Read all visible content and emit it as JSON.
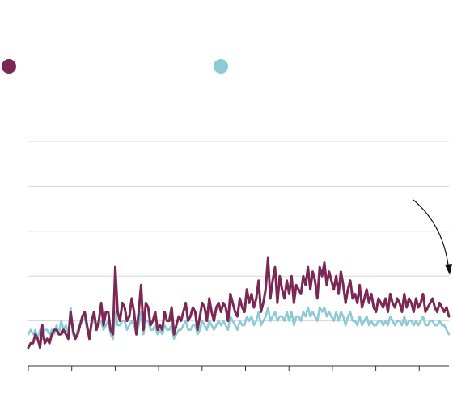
{
  "chart_data": {
    "type": "line",
    "title": "",
    "xlabel": "",
    "ylabel": "",
    "x_count": 180,
    "ylim": [
      0,
      50
    ],
    "yticks": [
      10,
      20,
      30,
      40,
      50
    ],
    "xtick_count": 10,
    "grid": true,
    "legend": "top",
    "series": [
      {
        "color": "#7b2855",
        "values": [
          4,
          5,
          5,
          7,
          6,
          4,
          9,
          5,
          6,
          5,
          7,
          8,
          8,
          7,
          7,
          8,
          7,
          6,
          12,
          8,
          6,
          7,
          9,
          11,
          12,
          9,
          6,
          10,
          12,
          8,
          10,
          14,
          9,
          12,
          12,
          8,
          7,
          22,
          12,
          10,
          14,
          13,
          10,
          11,
          15,
          12,
          7,
          12,
          18,
          8,
          14,
          13,
          9,
          10,
          12,
          8,
          9,
          8,
          12,
          10,
          10,
          13,
          7,
          9,
          11,
          10,
          12,
          14,
          10,
          11,
          13,
          12,
          8,
          11,
          14,
          13,
          10,
          15,
          12,
          10,
          13,
          14,
          12,
          14,
          13,
          10,
          16,
          14,
          12,
          11,
          15,
          13,
          12,
          17,
          14,
          16,
          13,
          15,
          19,
          12,
          14,
          17,
          24,
          15,
          19,
          22,
          14,
          20,
          17,
          15,
          19,
          16,
          20,
          14,
          18,
          17,
          16,
          20,
          18,
          22,
          17,
          21,
          19,
          15,
          22,
          20,
          23,
          18,
          21,
          19,
          17,
          20,
          16,
          21,
          18,
          14,
          17,
          19,
          15,
          16,
          14,
          18,
          13,
          15,
          17,
          14,
          16,
          13,
          12,
          15,
          14,
          13,
          15,
          12,
          16,
          14,
          13,
          15,
          14,
          12,
          16,
          13,
          15,
          14,
          12,
          15,
          13,
          14,
          16,
          12,
          13,
          14,
          15,
          13,
          12,
          14,
          13,
          12,
          13,
          11
        ]
      },
      {
        "color": "#8ccad6",
        "values": [
          7,
          8,
          7,
          8,
          6,
          8,
          6,
          8,
          8,
          7,
          8,
          7,
          9,
          7,
          10,
          8,
          9,
          7,
          13,
          7,
          6,
          8,
          9,
          10,
          11,
          8,
          7,
          9,
          11,
          8,
          9,
          10,
          8,
          9,
          10,
          7,
          6,
          12,
          9,
          9,
          10,
          10,
          8,
          9,
          10,
          9,
          7,
          9,
          12,
          7,
          10,
          10,
          8,
          8,
          9,
          7,
          8,
          7,
          9,
          8,
          8,
          9,
          6,
          7,
          8,
          8,
          9,
          10,
          8,
          8,
          9,
          9,
          7,
          8,
          10,
          9,
          8,
          10,
          9,
          8,
          9,
          10,
          9,
          10,
          9,
          8,
          11,
          10,
          9,
          8,
          10,
          9,
          9,
          11,
          10,
          11,
          9,
          10,
          12,
          9,
          10,
          11,
          13,
          10,
          11,
          12,
          10,
          11,
          11,
          10,
          12,
          10,
          12,
          9,
          11,
          11,
          10,
          12,
          11,
          13,
          11,
          12,
          11,
          10,
          13,
          12,
          13,
          11,
          12,
          11,
          10,
          12,
          10,
          12,
          11,
          9,
          11,
          12,
          10,
          10,
          9,
          11,
          9,
          10,
          11,
          9,
          10,
          9,
          9,
          10,
          10,
          9,
          10,
          9,
          11,
          10,
          9,
          10,
          10,
          9,
          11,
          9,
          10,
          10,
          9,
          10,
          9,
          10,
          11,
          9,
          9,
          10,
          10,
          9,
          9,
          10,
          9,
          9,
          8,
          7
        ]
      }
    ]
  }
}
